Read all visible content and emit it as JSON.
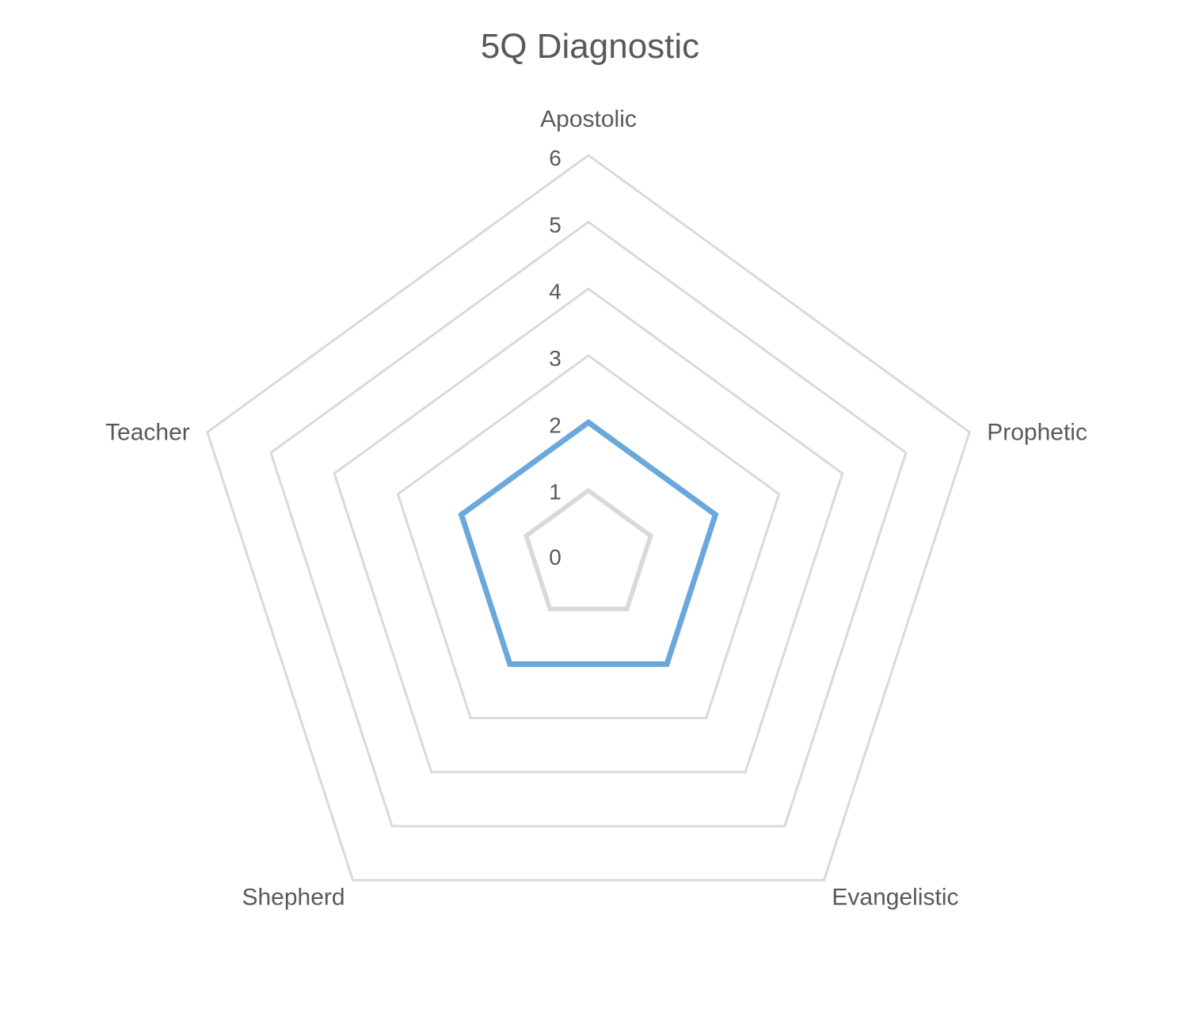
{
  "chart_data": {
    "type": "radar",
    "title": "5Q Diagnostic",
    "categories": [
      "Apostolic",
      "Prophetic",
      "Evangelistic",
      "Shepherd",
      "Teacher"
    ],
    "series": [
      {
        "values": [
          2,
          2,
          2,
          2,
          2
        ],
        "color": "#6aa8dc"
      }
    ],
    "rlim": [
      0,
      6
    ],
    "ticks": [
      "0",
      "1",
      "2",
      "3",
      "4",
      "5",
      "6"
    ],
    "grid": true,
    "legend": "none"
  }
}
